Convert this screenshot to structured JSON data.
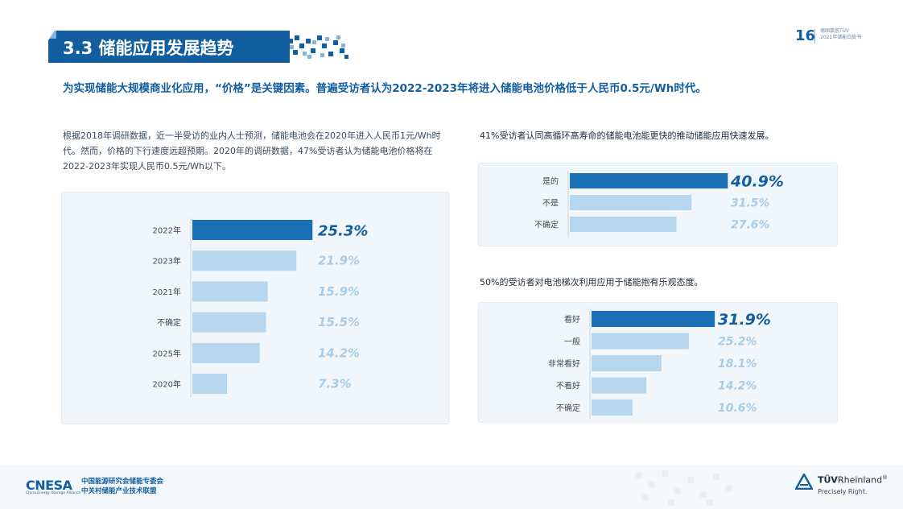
{
  "header": {
    "section_title": "3.3 储能应用发展趋势",
    "page_number": "16",
    "meta_line1": "德国莱茵TÜV",
    "meta_line2": "2021年储能白皮书"
  },
  "headline": "为实现储能大规模商业化应用，“价格”是关键因素。普遍受访者认为2022-2023年将进入储能电池价格低于人民币0.5元/Wh时代。",
  "left_paragraph": "根据2018年调研数据，近一半受访的业内人士预测，储能电池会在2020年进入人民币1元/Wh时代。然而，价格的下行速度远超预期。2020年的调研数据，47%受访者认为储能电池价格将在2022-2023年实现人民币0.5元/Wh以下。",
  "right_note_1": "41%受访者认同高循环高寿命的储能电池能更快的推动储能应用快速发展。",
  "right_note_2": "50%的受访者对电池梯次利用应用于储能抱有乐观态度。",
  "colors": {
    "highlight": "#1a6fb5",
    "bar_light": "#b7d7ee",
    "value_light": "#a9cce6",
    "brand": "#125e9e"
  },
  "chart_data": [
    {
      "type": "bar",
      "orientation": "horizontal",
      "categories": [
        "2022年",
        "2023年",
        "2021年",
        "不确定",
        "2025年",
        "2020年"
      ],
      "values": [
        25.3,
        21.9,
        15.9,
        15.5,
        14.2,
        7.3
      ],
      "value_labels": [
        "25.3%",
        "21.9%",
        "15.9%",
        "15.5%",
        "14.2%",
        "7.3%"
      ],
      "highlight_index": 0
    },
    {
      "type": "bar",
      "orientation": "horizontal",
      "categories": [
        "是的",
        "不是",
        "不确定"
      ],
      "values": [
        40.9,
        31.5,
        27.6
      ],
      "value_labels": [
        "40.9%",
        "31.5%",
        "27.6%"
      ],
      "highlight_index": 0
    },
    {
      "type": "bar",
      "orientation": "horizontal",
      "categories": [
        "看好",
        "一般",
        "非常看好",
        "不看好",
        "不确定"
      ],
      "values": [
        31.9,
        25.2,
        18.1,
        14.2,
        10.6
      ],
      "value_labels": [
        "31.9%",
        "25.2%",
        "18.1%",
        "14.2%",
        "10.6%"
      ],
      "highlight_index": 0
    }
  ],
  "footer": {
    "cnesa_logo": "CNESA",
    "cnesa_sub": "China Energy Storage Alliance",
    "cnesa_line1": "中国能源研究会储能专委会",
    "cnesa_line2": "中关村储能产业技术联盟",
    "tuv_name_bold": "TÜV",
    "tuv_name_rest": "Rheinland",
    "tuv_mark": "®",
    "tuv_tagline": "Precisely Right."
  }
}
